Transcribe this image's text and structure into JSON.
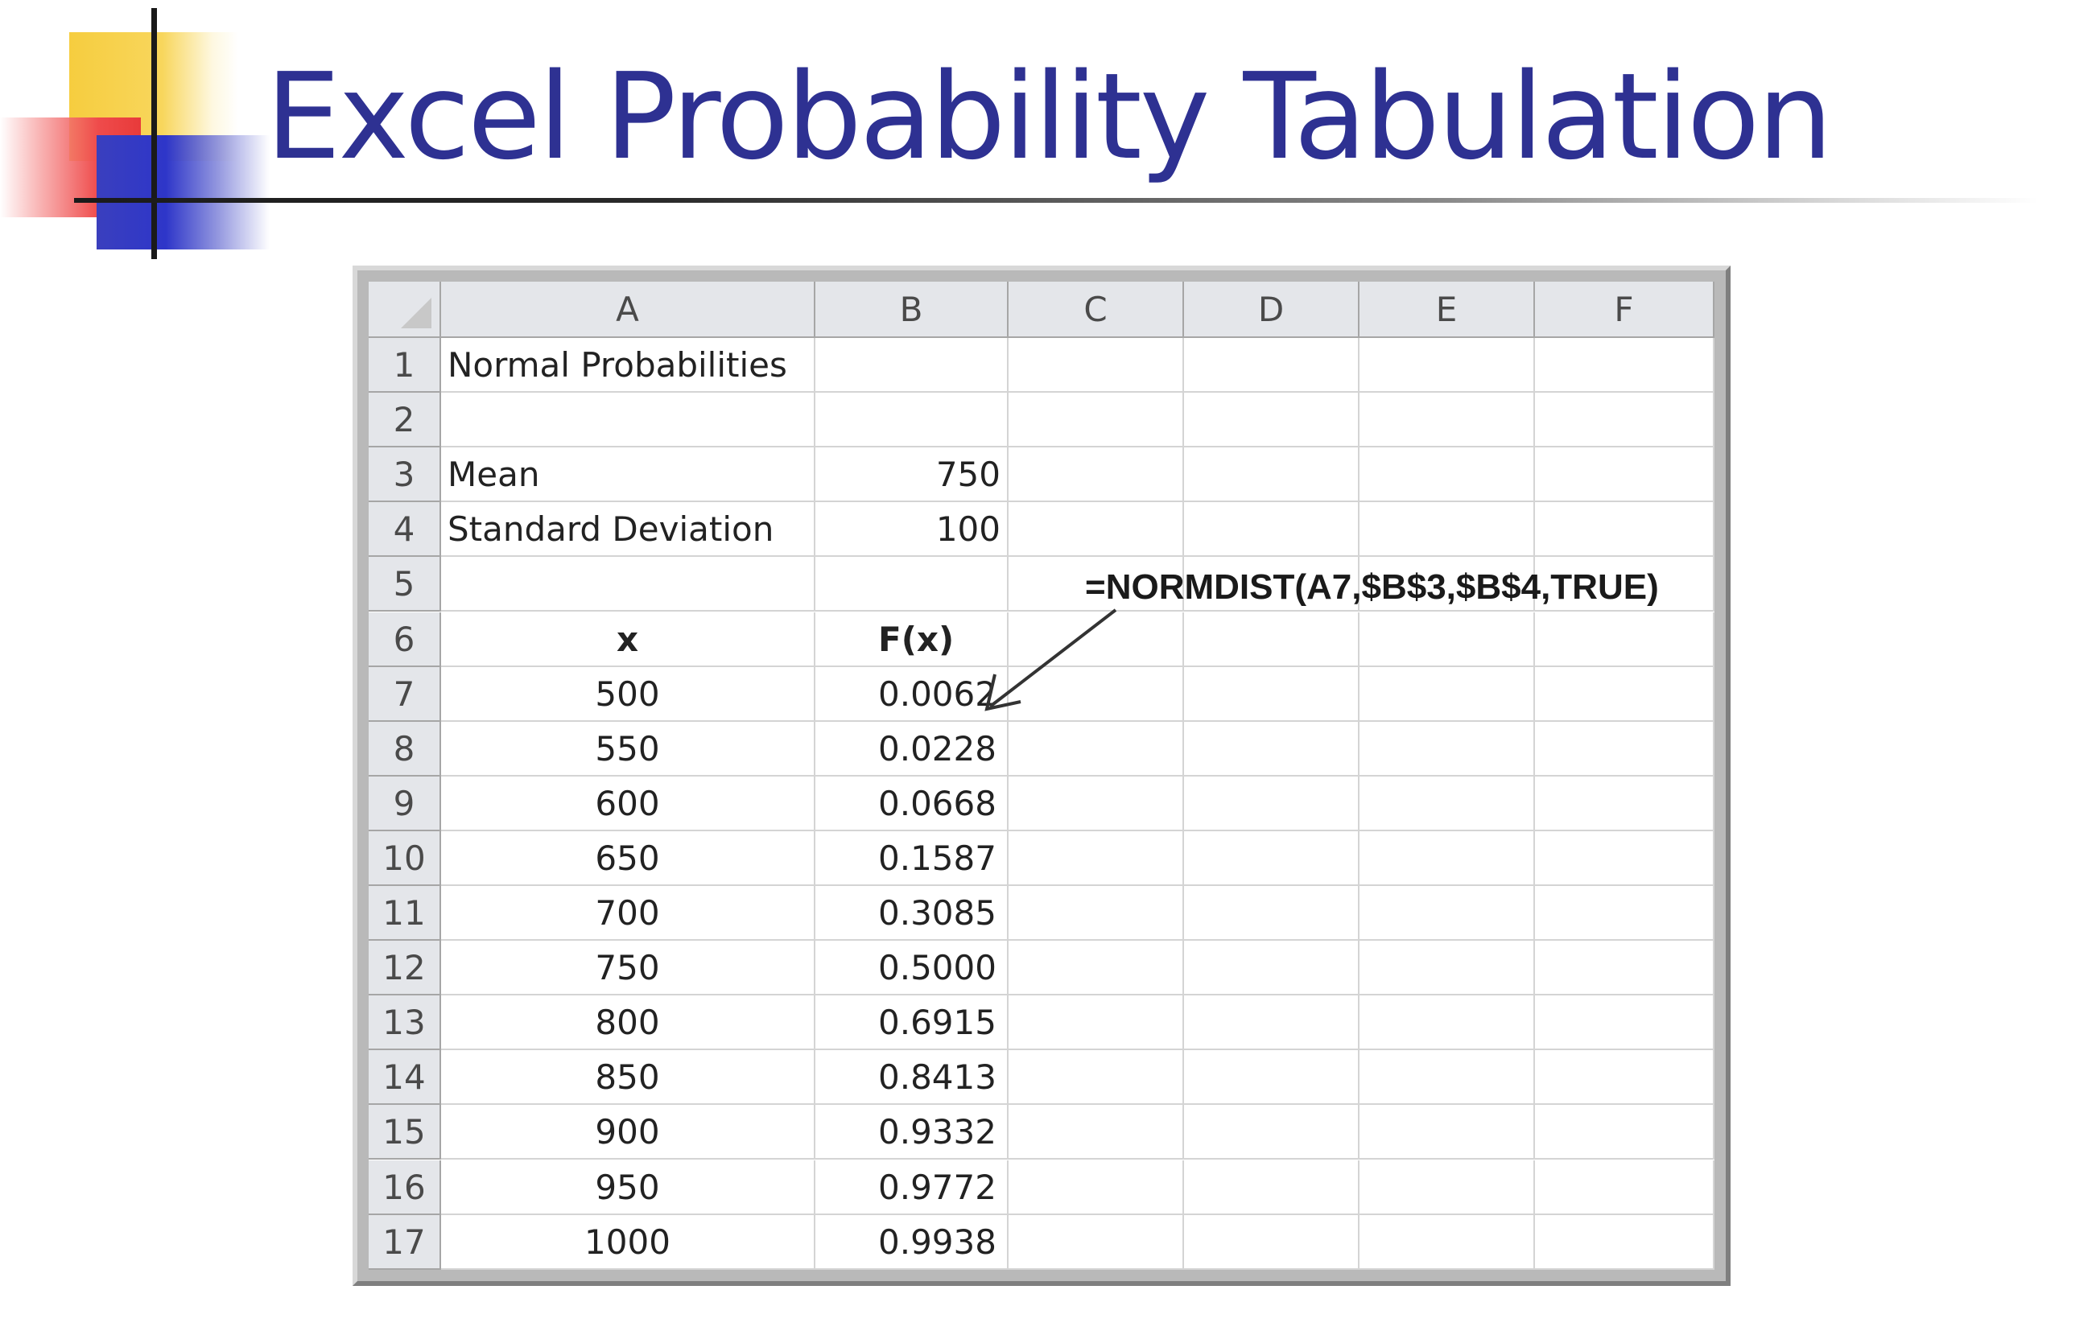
{
  "slide": {
    "title": "Excel Probability Tabulation"
  },
  "sheet": {
    "columns": [
      "A",
      "B",
      "C",
      "D",
      "E",
      "F"
    ],
    "rows": [
      {
        "num": "1",
        "a": "Normal Probabilities",
        "b": ""
      },
      {
        "num": "2",
        "a": "",
        "b": ""
      },
      {
        "num": "3",
        "a": "Mean",
        "b": "750"
      },
      {
        "num": "4",
        "a": "Standard Deviation",
        "b": "100"
      },
      {
        "num": "5",
        "a": "",
        "b": ""
      },
      {
        "num": "6",
        "a": "x",
        "b": "F(x)"
      },
      {
        "num": "7",
        "a": "500",
        "b": "0.0062"
      },
      {
        "num": "8",
        "a": "550",
        "b": "0.0228"
      },
      {
        "num": "9",
        "a": "600",
        "b": "0.0668"
      },
      {
        "num": "10",
        "a": "650",
        "b": "0.1587"
      },
      {
        "num": "11",
        "a": "700",
        "b": "0.3085"
      },
      {
        "num": "12",
        "a": "750",
        "b": "0.5000"
      },
      {
        "num": "13",
        "a": "800",
        "b": "0.6915"
      },
      {
        "num": "14",
        "a": "850",
        "b": "0.8413"
      },
      {
        "num": "15",
        "a": "900",
        "b": "0.9332"
      },
      {
        "num": "16",
        "a": "950",
        "b": "0.9772"
      },
      {
        "num": "17",
        "a": "1000",
        "b": "0.9938"
      }
    ],
    "annotation": "=NORMDIST(A7,$B$3,$B$4,TRUE)"
  },
  "colors": {
    "title": "#2e3192",
    "header_bg": "#e4e6ea",
    "gridline": "#d4d4d4"
  }
}
